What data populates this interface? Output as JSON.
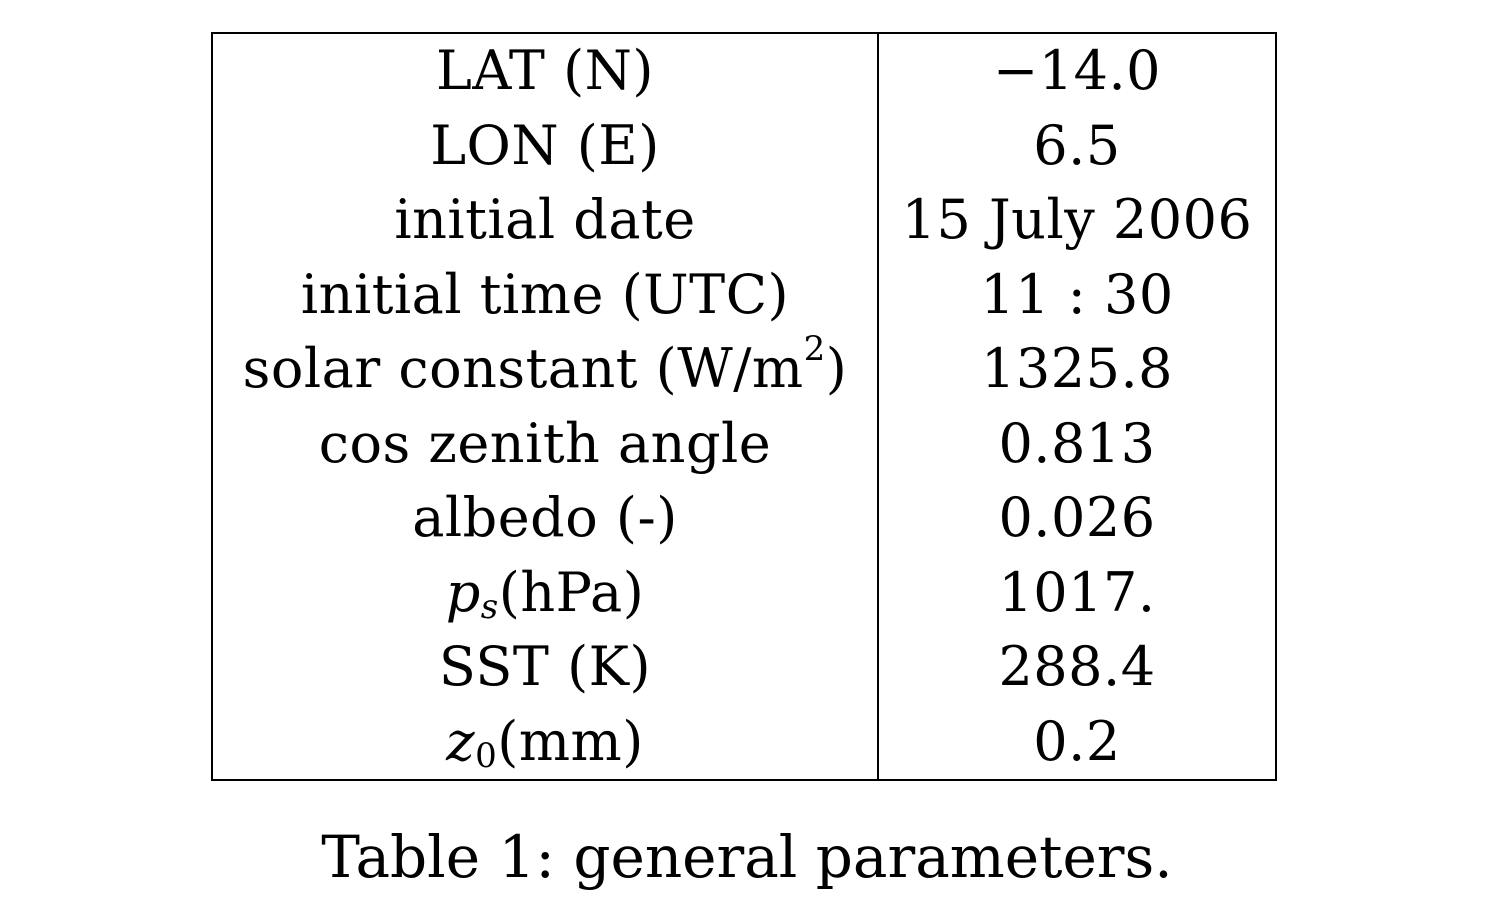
{
  "table": {
    "rows": [
      {
        "name": "LAT (N)",
        "value": "−14.0"
      },
      {
        "name": "LON (E)",
        "value": "6.5"
      },
      {
        "name": "initial date",
        "value": "15 July 2006"
      },
      {
        "name": "initial time (UTC)",
        "value": "11 : 30"
      },
      {
        "name_prefix": "solar constant (W/m",
        "name_sup": "2",
        "name_suffix": ")",
        "value": "1325.8"
      },
      {
        "name": "cos zenith angle",
        "value": "0.813"
      },
      {
        "name": "albedo (-)",
        "value": "0.026"
      },
      {
        "name_var": "p",
        "name_sub": "s",
        "name_suffix": " (hPa)",
        "value": "1017."
      },
      {
        "name": "SST (K)",
        "value": "288.4"
      },
      {
        "name_var": "z",
        "name_sub": "0",
        "name_suffix": " (mm)",
        "value": "0.2"
      }
    ]
  },
  "caption": "Table 1: general parameters."
}
